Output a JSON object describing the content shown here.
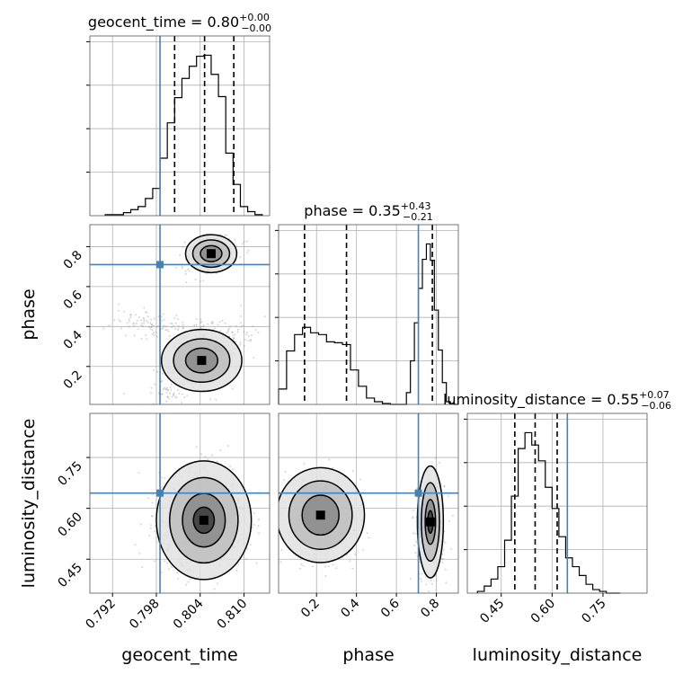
{
  "chart_data": {
    "type": "corner",
    "parameters": [
      "geocent_time",
      "phase",
      "luminosity_distance"
    ],
    "truths": {
      "geocent_time": 0.7985,
      "phase": 0.71,
      "luminosity_distance": 0.645
    },
    "ranges": {
      "geocent_time": [
        0.7889,
        0.8135
      ],
      "phase": [
        0.01,
        0.91
      ],
      "luminosity_distance": [
        0.35,
        0.88
      ]
    },
    "ticks": {
      "geocent_time": [
        "0.792",
        "0.798",
        "0.804",
        "0.810"
      ],
      "phase": [
        "0.2",
        "0.4",
        "0.6",
        "0.8"
      ],
      "luminosity_distance": [
        "0.45",
        "0.60",
        "0.75"
      ]
    },
    "tick_values": {
      "geocent_time": [
        0.792,
        0.798,
        0.804,
        0.81
      ],
      "phase": [
        0.2,
        0.4,
        0.6,
        0.8
      ],
      "luminosity_distance": [
        0.45,
        0.6,
        0.75
      ]
    },
    "titles": {
      "geocent_time": {
        "main": "geocent_time = 0.80",
        "plus": "+0.00",
        "minus": "−0.00"
      },
      "phase": {
        "main": "phase = 0.35",
        "plus": "+0.43",
        "minus": "−0.21"
      },
      "luminosity_distance": {
        "main": "luminosity_distance = 0.55",
        "plus": "+0.07",
        "minus": "−0.06"
      }
    },
    "quantiles": {
      "geocent_time": [
        0.8005,
        0.8046,
        0.8086
      ],
      "phase": [
        0.14,
        0.35,
        0.78
      ],
      "luminosity_distance": [
        0.49,
        0.55,
        0.615
      ]
    },
    "histograms": {
      "geocent_time": {
        "edges": [
          0.791,
          0.7935,
          0.7945,
          0.7955,
          0.7965,
          0.7975,
          0.7985,
          0.7995,
          0.8005,
          0.8015,
          0.8025,
          0.8035,
          0.8045,
          0.8055,
          0.8065,
          0.8075,
          0.8085,
          0.8095,
          0.8105,
          0.8115,
          0.8125
        ],
        "counts": [
          1,
          3,
          6,
          9,
          17,
          27,
          57,
          92,
          117,
          136,
          148,
          158,
          159,
          140,
          118,
          62,
          31,
          9,
          4,
          1
        ]
      },
      "phase": {
        "edges": [
          0.01,
          0.05,
          0.09,
          0.13,
          0.17,
          0.21,
          0.25,
          0.29,
          0.33,
          0.37,
          0.41,
          0.45,
          0.49,
          0.53,
          0.57,
          0.61,
          0.65,
          0.67,
          0.69,
          0.71,
          0.73,
          0.75,
          0.77,
          0.79,
          0.81,
          0.83,
          0.85,
          0.87,
          0.89,
          0.91
        ],
        "counts": [
          17,
          59,
          77,
          85,
          79,
          77,
          69,
          68,
          66,
          38,
          20,
          7,
          3,
          1,
          0,
          0,
          13,
          48,
          90,
          128,
          160,
          177,
          159,
          104,
          60,
          24,
          3,
          1,
          0
        ]
      },
      "luminosity_distance": {
        "edges": [
          0.38,
          0.4,
          0.42,
          0.44,
          0.46,
          0.48,
          0.5,
          0.52,
          0.54,
          0.56,
          0.58,
          0.6,
          0.62,
          0.64,
          0.66,
          0.68,
          0.7,
          0.72,
          0.74,
          0.76,
          0.78,
          0.8
        ],
        "counts": [
          1,
          4,
          8,
          15,
          30,
          55,
          82,
          91,
          84,
          75,
          60,
          48,
          32,
          20,
          15,
          10,
          5,
          2,
          1,
          0,
          0
        ]
      }
    }
  }
}
